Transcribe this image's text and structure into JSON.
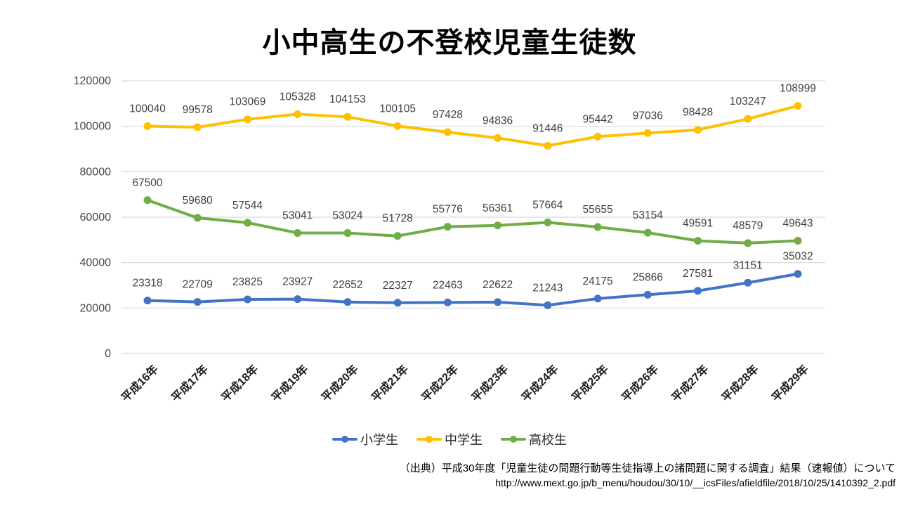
{
  "title": "小中高生の不登校児童生徒数",
  "chart_data": {
    "type": "line",
    "categories": [
      "平成16年",
      "平成17年",
      "平成18年",
      "平成19年",
      "平成20年",
      "平成21年",
      "平成22年",
      "平成23年",
      "平成24年",
      "平成25年",
      "平成26年",
      "平成27年",
      "平成28年",
      "平成29年"
    ],
    "series": [
      {
        "id": "elementary",
        "name": "小学生",
        "color": "#4472C4",
        "values": [
          23318,
          22709,
          23825,
          23927,
          22652,
          22327,
          22463,
          22622,
          21243,
          24175,
          25866,
          27581,
          31151,
          35032
        ]
      },
      {
        "id": "junior-high",
        "name": "中学生",
        "color": "#FFC000",
        "values": [
          100040,
          99578,
          103069,
          105328,
          104153,
          100105,
          97428,
          94836,
          91446,
          95442,
          97036,
          98428,
          103247,
          108999
        ]
      },
      {
        "id": "high-school",
        "name": "高校生",
        "color": "#70AD47",
        "values": [
          67500,
          59680,
          57544,
          53041,
          53024,
          51728,
          55776,
          56361,
          57664,
          55655,
          53154,
          49591,
          48579,
          49643
        ]
      }
    ],
    "ylim": [
      0,
      120000
    ],
    "yticks": [
      0,
      20000,
      40000,
      60000,
      80000,
      100000,
      120000
    ],
    "grid": true,
    "gridline_color": "#D9D9D9",
    "data_labels": true,
    "legend_position": "bottom",
    "xlabel": "",
    "ylabel": ""
  },
  "footer": {
    "source_line": "（出典）平成30年度「児童生徒の問題行動等生徒指導上の諸問題に関する調査」結果（速報値）について",
    "url_line": "http://www.mext.go.jp/b_menu/houdou/30/10/__icsFiles/afieldfile/2018/10/25/1410392_2.pdf"
  }
}
